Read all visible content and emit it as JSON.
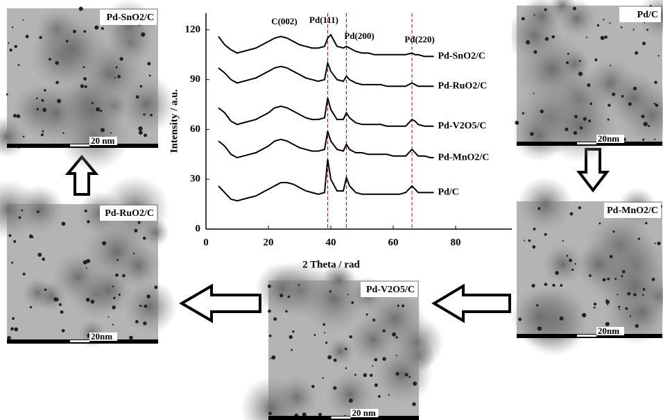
{
  "chart_data": {
    "type": "line",
    "x_label": "2 Theta / rad",
    "y_label": "Intensity / a.u.",
    "xlim": [
      0,
      98
    ],
    "xticks": [
      0,
      20,
      40,
      60,
      80
    ],
    "ylim": [
      0,
      130
    ],
    "yticks": [
      0,
      30,
      60,
      90,
      120
    ],
    "x": [
      4,
      6,
      8,
      10,
      12,
      14,
      16,
      18,
      20,
      22,
      24,
      26,
      28,
      30,
      32,
      34,
      36,
      38,
      39,
      40,
      42,
      44,
      45,
      46,
      48,
      50,
      52,
      54,
      56,
      58,
      60,
      62,
      64,
      66,
      67,
      68,
      70,
      72,
      73
    ],
    "series": [
      {
        "name": "Pd-SnO2/C",
        "color": "#000000",
        "values": [
          116,
          111,
          108,
          106,
          107,
          108,
          109,
          111,
          113,
          115,
          116,
          115,
          113,
          111,
          110,
          109,
          109,
          110,
          115,
          117,
          110,
          109,
          110,
          109,
          107,
          106,
          106,
          105,
          105,
          105,
          105,
          105,
          105,
          106,
          105,
          105,
          104,
          104,
          104
        ]
      },
      {
        "name": "Pd-RuO2/C",
        "color": "#000000",
        "values": [
          97,
          94,
          90,
          88,
          89,
          90,
          91,
          93,
          95,
          97,
          98,
          97,
          95,
          93,
          91,
          90,
          89,
          90,
          100,
          95,
          90,
          89,
          92,
          90,
          88,
          87,
          87,
          87,
          87,
          86,
          86,
          86,
          86,
          88,
          87,
          86,
          86,
          86,
          86
        ]
      },
      {
        "name": "Pd-V2O5/C",
        "color": "#000000",
        "values": [
          73,
          70,
          65,
          63,
          64,
          65,
          66,
          68,
          70,
          73,
          74,
          73,
          71,
          69,
          67,
          66,
          66,
          67,
          79,
          72,
          66,
          66,
          70,
          67,
          64,
          63,
          63,
          63,
          63,
          62,
          62,
          62,
          62,
          66,
          65,
          63,
          62,
          62,
          62
        ]
      },
      {
        "name": "Pd-MnO2/C",
        "color": "#000000",
        "values": [
          53,
          50,
          45,
          43,
          44,
          45,
          46,
          48,
          50,
          53,
          54,
          53,
          51,
          49,
          48,
          47,
          47,
          48,
          59,
          53,
          48,
          47,
          51,
          48,
          46,
          46,
          45,
          45,
          45,
          45,
          44,
          44,
          44,
          48,
          46,
          44,
          44,
          43,
          43
        ]
      },
      {
        "name": "Pd/C",
        "color": "#000000",
        "values": [
          26,
          22,
          18,
          17,
          18,
          19,
          20,
          22,
          24,
          26,
          28,
          28,
          27,
          25,
          23,
          22,
          21,
          22,
          42,
          30,
          23,
          23,
          31,
          26,
          22,
          21,
          21,
          21,
          21,
          21,
          21,
          21,
          22,
          26,
          24,
          22,
          22,
          22,
          22
        ]
      }
    ],
    "reference_lines": [
      39,
      45,
      66
    ],
    "reference_color": "#cc0000",
    "annotations": [
      "C(002)",
      "Pd(111)",
      "Pd(200)",
      "Pd(220)"
    ]
  },
  "panels": [
    {
      "label": "Pd-SnO2/C",
      "scale": "20 nm"
    },
    {
      "label": "Pd/C",
      "scale": "20nm"
    },
    {
      "label": "Pd-MnO2/C",
      "scale": "20nm"
    },
    {
      "label": "Pd-V2O5/C",
      "scale": "20 nm"
    },
    {
      "label": "Pd-RuO2/C",
      "scale": "20nm"
    }
  ]
}
